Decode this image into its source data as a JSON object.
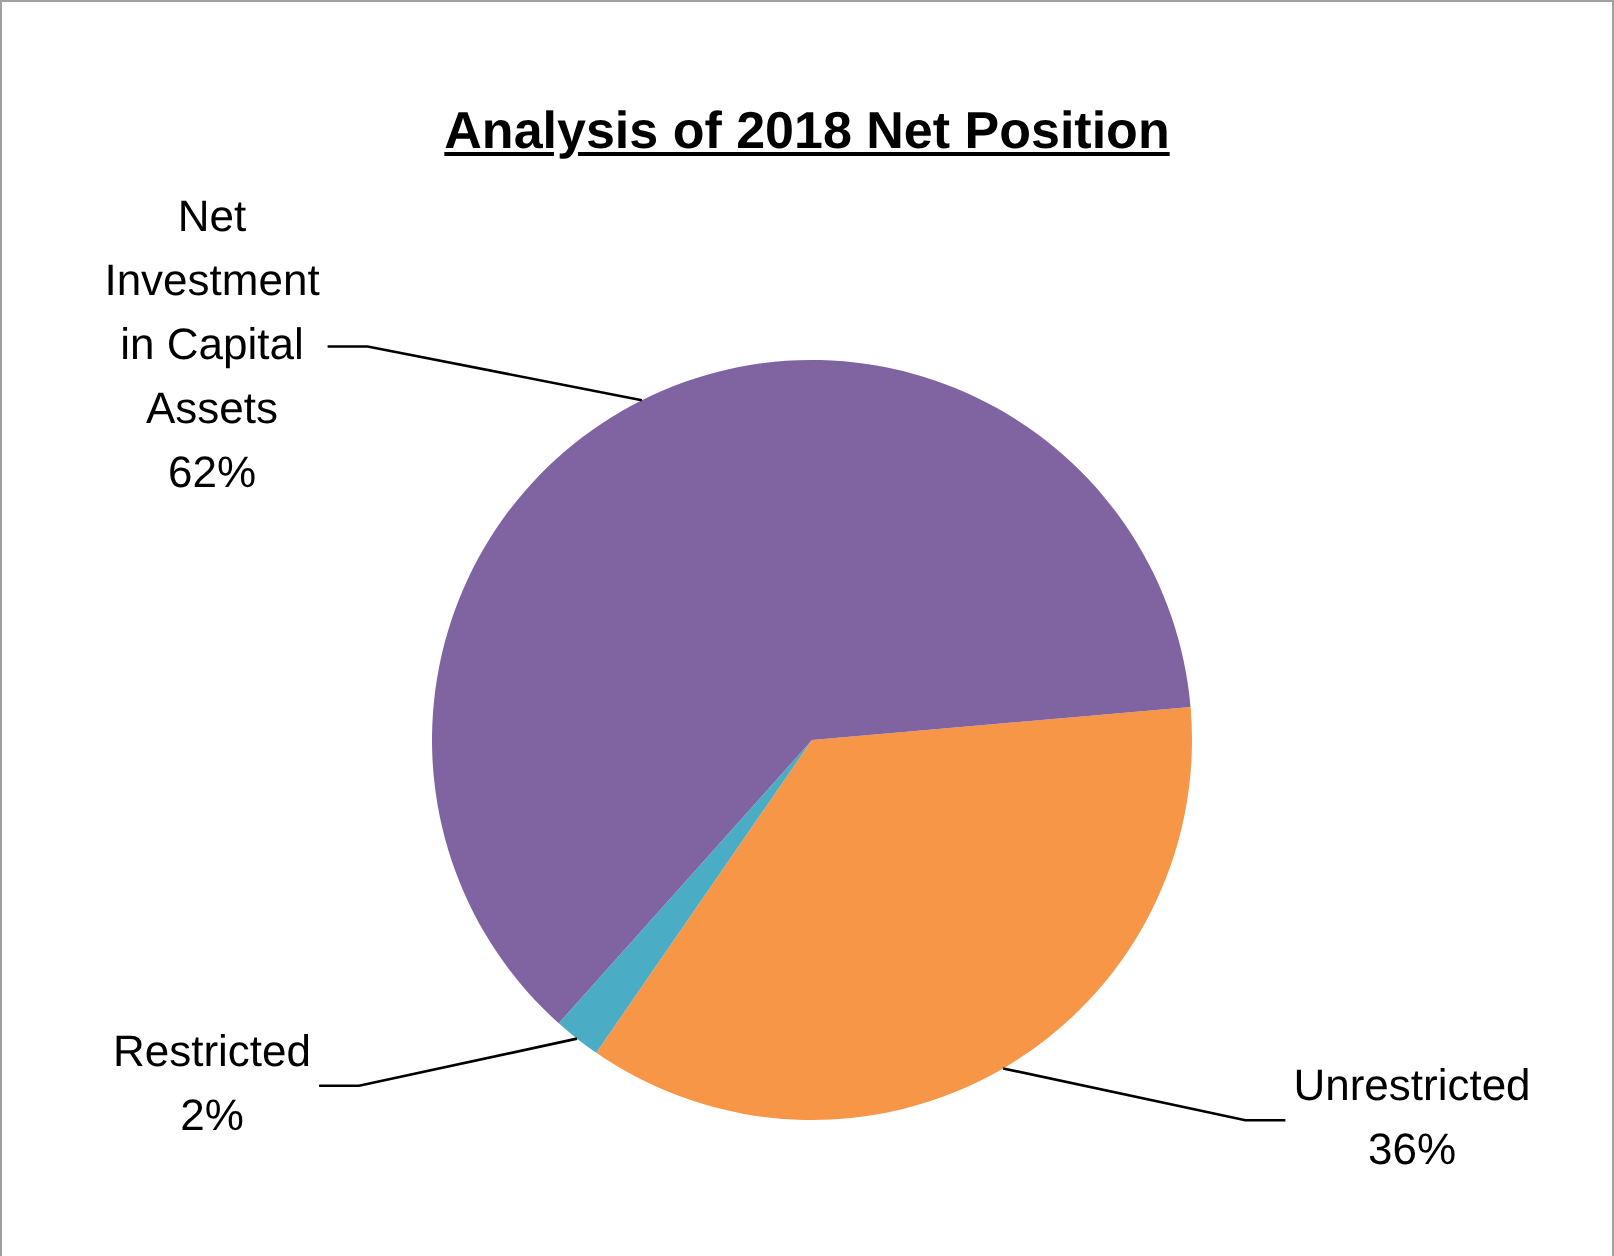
{
  "chart_data": {
    "type": "pie",
    "title": "Analysis of 2018 Net Position",
    "categories": [
      "Unrestricted",
      "Restricted",
      "Net Investment in Capital Assets"
    ],
    "values": [
      36,
      2,
      62
    ],
    "value_labels": [
      "36%",
      "2%",
      "62%"
    ],
    "colors": [
      "#f79646",
      "#4bacc6",
      "#8064a2"
    ],
    "legend": false
  }
}
